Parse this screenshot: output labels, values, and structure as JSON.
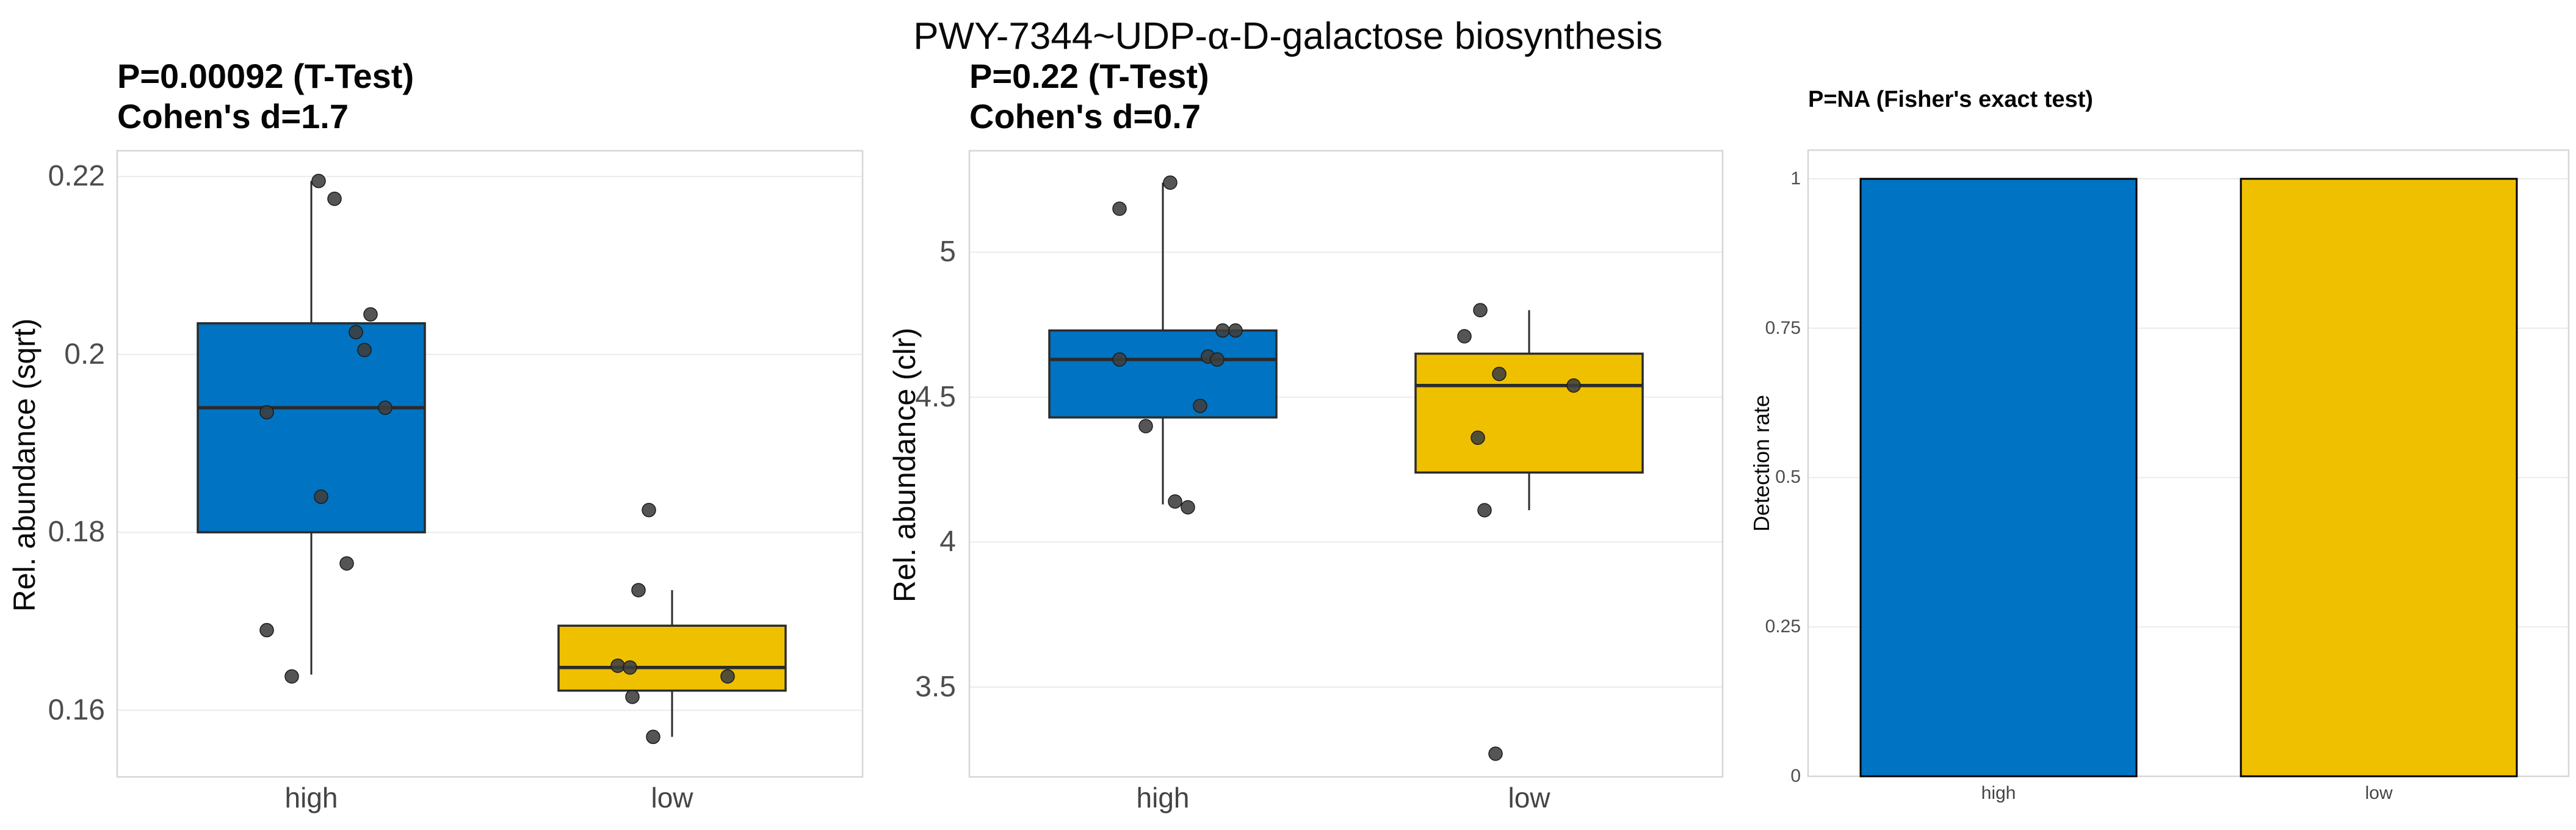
{
  "title": "PWY-7344~UDP-α-D-galactose biosynthesis",
  "colors": {
    "group_high": "#0073C2",
    "group_low": "#EFC000",
    "box_stroke": "#2b2b2b",
    "bar_stroke": "#000000",
    "point": "#3d3d3d",
    "gridline": "#ebebeb",
    "panel_border": "#d6d6d6",
    "tick_text": "#4d4d4d"
  },
  "chart_data": [
    {
      "type": "boxplot",
      "stat_label": "P=0.00092 (T-Test)",
      "effect_label": "Cohen's d=1.7",
      "ylabel": "Rel. abundance (sqrt)",
      "ylim": [
        0.1525,
        0.2229
      ],
      "yticks": [
        {
          "label": "0.22",
          "v": 0.22
        },
        {
          "label": "0.2",
          "v": 0.2
        },
        {
          "label": "0.18",
          "v": 0.18
        },
        {
          "label": "0.16",
          "v": 0.16
        }
      ],
      "categories": [
        "high",
        "low"
      ],
      "series": [
        {
          "name": "high",
          "color_key": "group_high",
          "box": {
            "whisker_low": 0.164,
            "q1": 0.18,
            "median": 0.194,
            "q3": 0.2035,
            "whisker_high": 0.2195
          },
          "points": [
            {
              "v": 0.2195,
              "dx": 12
            },
            {
              "v": 0.2175,
              "dx": 38
            },
            {
              "v": 0.2045,
              "dx": 97
            },
            {
              "v": 0.2025,
              "dx": 73
            },
            {
              "v": 0.2005,
              "dx": 87
            },
            {
              "v": 0.194,
              "dx": 121
            },
            {
              "v": 0.1935,
              "dx": -73
            },
            {
              "v": 0.184,
              "dx": 16
            },
            {
              "v": 0.1765,
              "dx": 58
            },
            {
              "v": 0.169,
              "dx": -73
            },
            {
              "v": 0.1638,
              "dx": -32
            }
          ]
        },
        {
          "name": "low",
          "color_key": "group_low",
          "box": {
            "whisker_low": 0.157,
            "q1": 0.1622,
            "median": 0.1648,
            "q3": 0.1695,
            "whisker_high": 0.1735
          },
          "points": [
            {
              "v": 0.1825,
              "dx": -38
            },
            {
              "v": 0.1735,
              "dx": -55
            },
            {
              "v": 0.165,
              "dx": -89
            },
            {
              "v": 0.1648,
              "dx": -69
            },
            {
              "v": 0.1638,
              "dx": 91
            },
            {
              "v": 0.1615,
              "dx": -65
            },
            {
              "v": 0.157,
              "dx": -31
            }
          ]
        }
      ]
    },
    {
      "type": "boxplot",
      "stat_label": "P=0.22 (T-Test)",
      "effect_label": "Cohen's d=0.7",
      "ylabel": "Rel. abundance (clr)",
      "ylim": [
        3.19,
        5.35
      ],
      "yticks": [
        {
          "label": "5",
          "v": 5.0
        },
        {
          "label": "4.5",
          "v": 4.5
        },
        {
          "label": "4",
          "v": 4.0
        },
        {
          "label": "3.5",
          "v": 3.5
        }
      ],
      "categories": [
        "high",
        "low"
      ],
      "series": [
        {
          "name": "high",
          "color_key": "group_high",
          "box": {
            "whisker_low": 4.13,
            "q1": 4.43,
            "median": 4.63,
            "q3": 4.73,
            "whisker_high": 5.24
          },
          "points": [
            {
              "v": 5.24,
              "dx": 12
            },
            {
              "v": 5.15,
              "dx": -71
            },
            {
              "v": 4.73,
              "dx": 98
            },
            {
              "v": 4.73,
              "dx": 119
            },
            {
              "v": 4.63,
              "dx": -71
            },
            {
              "v": 4.64,
              "dx": 74
            },
            {
              "v": 4.63,
              "dx": 89
            },
            {
              "v": 4.47,
              "dx": 61
            },
            {
              "v": 4.4,
              "dx": -28
            },
            {
              "v": 4.14,
              "dx": 20
            },
            {
              "v": 4.12,
              "dx": 41
            }
          ]
        },
        {
          "name": "low",
          "color_key": "group_low",
          "box": {
            "whisker_low": 4.11,
            "q1": 4.24,
            "median": 4.54,
            "q3": 4.65,
            "whisker_high": 4.8
          },
          "points": [
            {
              "v": 4.8,
              "dx": -80
            },
            {
              "v": 4.71,
              "dx": -106
            },
            {
              "v": 4.58,
              "dx": -49
            },
            {
              "v": 4.54,
              "dx": 73
            },
            {
              "v": 4.36,
              "dx": -84
            },
            {
              "v": 4.11,
              "dx": -73
            },
            {
              "v": 3.27,
              "dx": -55
            }
          ]
        }
      ]
    },
    {
      "type": "bar",
      "stat_label": "P=NA (Fisher's exact test)",
      "ylabel": "Detection rate",
      "ylim": [
        0,
        1.048
      ],
      "yticks": [
        {
          "label": "1",
          "v": 1.0
        },
        {
          "label": "0.75",
          "v": 0.75
        },
        {
          "label": "0.5",
          "v": 0.5
        },
        {
          "label": "0.25",
          "v": 0.25
        },
        {
          "label": "0",
          "v": 0.0
        }
      ],
      "categories": [
        "high",
        "low"
      ],
      "values": [
        1,
        1
      ]
    }
  ]
}
